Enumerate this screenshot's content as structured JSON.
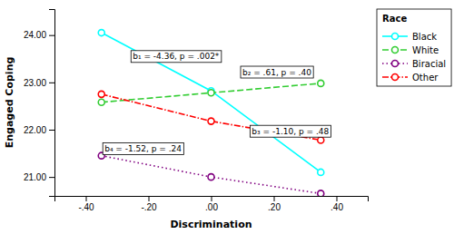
{
  "chart_data": {
    "type": "line",
    "xlabel": "Discrimination",
    "ylabel": "Engaged Coping",
    "x": [
      -0.35,
      0.0,
      0.35
    ],
    "xlim": [
      -0.5,
      0.5
    ],
    "ylim": [
      20.6,
      24.55
    ],
    "xticks": [
      {
        "value": -0.4,
        "label": "-.40"
      },
      {
        "value": -0.2,
        "label": "-.20"
      },
      {
        "value": 0.0,
        "label": ".00"
      },
      {
        "value": 0.2,
        "label": ".20"
      },
      {
        "value": 0.4,
        "label": ".40"
      }
    ],
    "yticks": [
      {
        "value": 21,
        "label": "21.00"
      },
      {
        "value": 22,
        "label": "22.00"
      },
      {
        "value": 23,
        "label": "23.00"
      },
      {
        "value": 24,
        "label": "24.00"
      }
    ],
    "marker": "circle",
    "series": [
      {
        "name": "Black",
        "color": "cyan",
        "line_style": "solid",
        "values": [
          24.05,
          22.82,
          21.1
        ]
      },
      {
        "name": "White",
        "color": "limegreen",
        "line_style": "dashed",
        "values": [
          22.58,
          22.78,
          22.98
        ]
      },
      {
        "name": "Biracial",
        "color": "purple",
        "line_style": "dotted",
        "values": [
          21.45,
          21.0,
          20.65
        ]
      },
      {
        "name": "Other",
        "color": "red",
        "line_style": "dashdot",
        "values": [
          22.75,
          22.18,
          21.78
        ]
      }
    ],
    "annotations": [
      {
        "text": "b₁ = -4.36, p = .002*",
        "x": -0.25,
        "y": 23.55
      },
      {
        "text": "b₂ = .61, p = .40",
        "x": 0.1,
        "y": 23.22
      },
      {
        "text": "b₃ = -1.10, p = .48",
        "x": 0.13,
        "y": 21.97
      },
      {
        "text": "b₄ = -1.52, p = .24",
        "x": -0.34,
        "y": 21.6
      }
    ],
    "legend": "upper right",
    "legend_title": "Race"
  }
}
